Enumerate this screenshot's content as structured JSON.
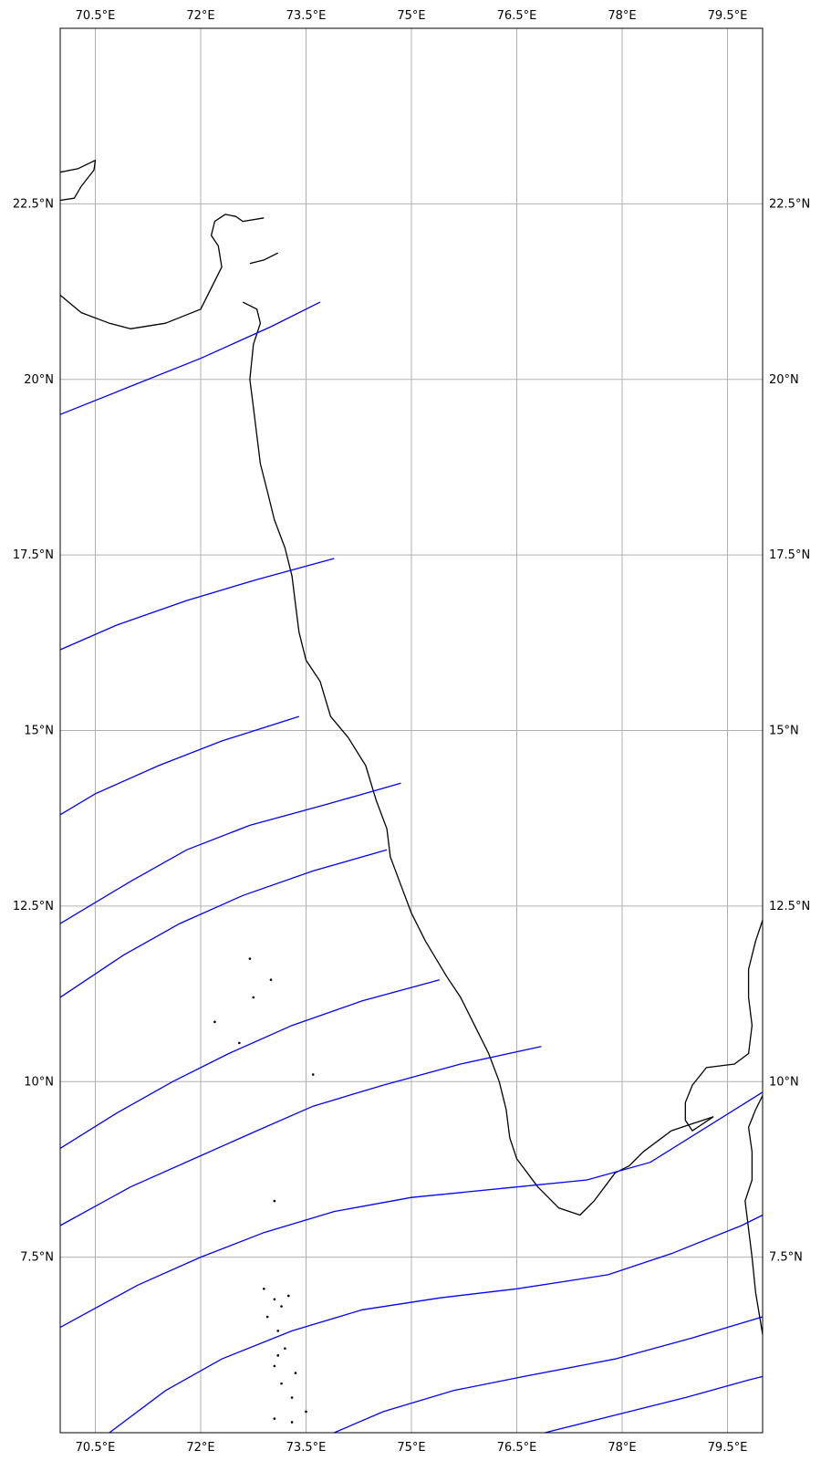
{
  "map": {
    "projection": "PlateCarree",
    "lon_range": [
      70.0,
      80.0
    ],
    "lat_range": [
      5.0,
      25.0
    ],
    "grid": true,
    "colors": {
      "grid": "#b0b0b0",
      "coastline": "#000000",
      "track": "#0000ff",
      "frame": "#000000",
      "background": "#ffffff"
    },
    "lon_ticks": [
      {
        "value": 70.5,
        "label": "70.5°E"
      },
      {
        "value": 72.0,
        "label": "72°E"
      },
      {
        "value": 73.5,
        "label": "73.5°E"
      },
      {
        "value": 75.0,
        "label": "75°E"
      },
      {
        "value": 76.5,
        "label": "76.5°E"
      },
      {
        "value": 78.0,
        "label": "78°E"
      },
      {
        "value": 79.5,
        "label": "79.5°E"
      }
    ],
    "lat_ticks": [
      {
        "value": 22.5,
        "label": "22.5°N"
      },
      {
        "value": 20.0,
        "label": "20°N"
      },
      {
        "value": 17.5,
        "label": "17.5°N"
      },
      {
        "value": 15.0,
        "label": "15°N"
      },
      {
        "value": 12.5,
        "label": "12.5°N"
      },
      {
        "value": 10.0,
        "label": "10°N"
      },
      {
        "value": 7.5,
        "label": "7.5°N"
      }
    ],
    "tracks": [
      [
        [
          70.0,
          19.5
        ],
        [
          71.0,
          19.9
        ],
        [
          72.0,
          20.3
        ],
        [
          73.0,
          20.75
        ],
        [
          73.7,
          21.1
        ]
      ],
      [
        [
          70.0,
          16.15
        ],
        [
          70.8,
          16.5
        ],
        [
          71.8,
          16.85
        ],
        [
          72.8,
          17.15
        ],
        [
          73.9,
          17.45
        ]
      ],
      [
        [
          70.0,
          13.8
        ],
        [
          70.5,
          14.1
        ],
        [
          71.4,
          14.5
        ],
        [
          72.3,
          14.85
        ],
        [
          73.4,
          15.2
        ]
      ],
      [
        [
          70.0,
          12.25
        ],
        [
          71.0,
          12.85
        ],
        [
          71.8,
          13.3
        ],
        [
          72.7,
          13.65
        ],
        [
          73.8,
          13.95
        ],
        [
          74.85,
          14.25
        ]
      ],
      [
        [
          70.0,
          11.2
        ],
        [
          70.9,
          11.8
        ],
        [
          71.7,
          12.25
        ],
        [
          72.6,
          12.65
        ],
        [
          73.6,
          13.0
        ],
        [
          74.65,
          13.3
        ]
      ],
      [
        [
          70.0,
          9.05
        ],
        [
          70.8,
          9.55
        ],
        [
          71.6,
          10.0
        ],
        [
          72.4,
          10.4
        ],
        [
          73.3,
          10.8
        ],
        [
          74.3,
          11.15
        ],
        [
          75.4,
          11.45
        ]
      ],
      [
        [
          70.0,
          7.95
        ],
        [
          71.0,
          8.5
        ],
        [
          71.9,
          8.9
        ],
        [
          72.8,
          9.3
        ],
        [
          73.6,
          9.65
        ],
        [
          74.6,
          9.95
        ],
        [
          75.7,
          10.25
        ],
        [
          76.85,
          10.5
        ]
      ],
      [
        [
          70.0,
          6.5
        ],
        [
          71.1,
          7.1
        ],
        [
          72.0,
          7.5
        ],
        [
          72.9,
          7.85
        ],
        [
          73.9,
          8.15
        ],
        [
          75.0,
          8.35
        ],
        [
          76.5,
          8.5
        ],
        [
          77.5,
          8.6
        ],
        [
          78.4,
          8.85
        ],
        [
          80.0,
          9.85
        ]
      ],
      [
        [
          70.7,
          5.0
        ],
        [
          71.5,
          5.6
        ],
        [
          72.3,
          6.05
        ],
        [
          73.3,
          6.45
        ],
        [
          74.3,
          6.75
        ],
        [
          75.4,
          6.92
        ],
        [
          76.5,
          7.05
        ],
        [
          77.8,
          7.25
        ],
        [
          78.7,
          7.55
        ],
        [
          79.7,
          7.95
        ],
        [
          80.0,
          8.1
        ]
      ],
      [
        [
          73.9,
          5.0
        ],
        [
          74.6,
          5.3
        ],
        [
          75.6,
          5.6
        ],
        [
          76.6,
          5.8
        ],
        [
          77.9,
          6.05
        ],
        [
          79.0,
          6.35
        ],
        [
          80.0,
          6.65
        ]
      ],
      [
        [
          76.9,
          5.0
        ],
        [
          77.9,
          5.25
        ],
        [
          78.9,
          5.5
        ],
        [
          79.8,
          5.75
        ],
        [
          80.0,
          5.8
        ]
      ]
    ],
    "coastlines": [
      [
        [
          70.0,
          22.95
        ],
        [
          70.25,
          23.0
        ],
        [
          70.5,
          23.12
        ],
        [
          70.48,
          22.98
        ],
        [
          70.3,
          22.75
        ],
        [
          70.2,
          22.58
        ],
        [
          70.0,
          22.55
        ]
      ],
      [
        [
          70.0,
          21.2
        ],
        [
          70.3,
          20.95
        ],
        [
          70.7,
          20.8
        ],
        [
          71.0,
          20.72
        ],
        [
          71.5,
          20.8
        ],
        [
          72.0,
          21.0
        ],
        [
          72.1,
          21.2
        ],
        [
          72.3,
          21.6
        ],
        [
          72.25,
          21.9
        ],
        [
          72.15,
          22.05
        ],
        [
          72.2,
          22.25
        ],
        [
          72.35,
          22.35
        ],
        [
          72.5,
          22.32
        ],
        [
          72.6,
          22.25
        ],
        [
          72.9,
          22.3
        ]
      ],
      [
        [
          72.7,
          21.65
        ],
        [
          72.9,
          21.7
        ],
        [
          73.1,
          21.8
        ]
      ],
      [
        [
          72.6,
          21.1
        ],
        [
          72.8,
          21.0
        ],
        [
          72.85,
          20.8
        ],
        [
          72.75,
          20.5
        ],
        [
          72.7,
          20.0
        ],
        [
          72.75,
          19.6
        ],
        [
          72.8,
          19.2
        ],
        [
          72.85,
          18.8
        ],
        [
          72.95,
          18.4
        ],
        [
          73.05,
          18.0
        ],
        [
          73.2,
          17.6
        ],
        [
          73.3,
          17.2
        ],
        [
          73.35,
          16.8
        ],
        [
          73.4,
          16.4
        ],
        [
          73.5,
          16.0
        ],
        [
          73.7,
          15.7
        ],
        [
          73.85,
          15.2
        ],
        [
          74.1,
          14.9
        ],
        [
          74.35,
          14.5
        ],
        [
          74.5,
          14.0
        ],
        [
          74.65,
          13.6
        ],
        [
          74.7,
          13.2
        ],
        [
          74.85,
          12.8
        ],
        [
          75.0,
          12.4
        ],
        [
          75.2,
          12.0
        ],
        [
          75.5,
          11.5
        ],
        [
          75.7,
          11.2
        ],
        [
          75.9,
          10.8
        ],
        [
          76.1,
          10.4
        ],
        [
          76.25,
          10.0
        ],
        [
          76.35,
          9.6
        ],
        [
          76.4,
          9.2
        ],
        [
          76.5,
          8.9
        ],
        [
          76.8,
          8.5
        ],
        [
          77.1,
          8.2
        ],
        [
          77.4,
          8.1
        ],
        [
          77.6,
          8.3
        ],
        [
          77.9,
          8.7
        ],
        [
          78.1,
          8.8
        ],
        [
          78.3,
          9.0
        ],
        [
          78.7,
          9.3
        ],
        [
          79.0,
          9.4
        ],
        [
          79.3,
          9.5
        ]
      ],
      [
        [
          79.3,
          9.5
        ],
        [
          79.0,
          9.3
        ],
        [
          78.9,
          9.45
        ],
        [
          78.9,
          9.7
        ],
        [
          79.0,
          9.95
        ],
        [
          79.2,
          10.2
        ],
        [
          79.6,
          10.25
        ],
        [
          79.8,
          10.4
        ],
        [
          79.85,
          10.8
        ],
        [
          79.8,
          11.2
        ],
        [
          79.8,
          11.6
        ],
        [
          79.9,
          12.0
        ],
        [
          80.0,
          12.3
        ]
      ],
      [
        [
          80.0,
          9.8
        ],
        [
          79.9,
          9.6
        ],
        [
          79.8,
          9.35
        ],
        [
          79.85,
          9.0
        ],
        [
          79.85,
          8.6
        ],
        [
          79.75,
          8.3
        ],
        [
          79.8,
          7.9
        ],
        [
          79.85,
          7.5
        ],
        [
          79.9,
          7.0
        ],
        [
          80.0,
          6.4
        ]
      ]
    ],
    "islands": [
      [
        72.7,
        11.75
      ],
      [
        73.0,
        11.45
      ],
      [
        72.75,
        11.2
      ],
      [
        72.2,
        10.85
      ],
      [
        72.55,
        10.55
      ],
      [
        73.6,
        10.1
      ],
      [
        73.05,
        8.3
      ],
      [
        72.9,
        7.05
      ],
      [
        73.05,
        6.9
      ],
      [
        73.15,
        6.8
      ],
      [
        73.25,
        6.95
      ],
      [
        72.95,
        6.65
      ],
      [
        73.1,
        6.45
      ],
      [
        73.2,
        6.2
      ],
      [
        73.05,
        5.95
      ],
      [
        73.15,
        5.7
      ],
      [
        73.3,
        5.5
      ],
      [
        73.5,
        5.3
      ],
      [
        73.05,
        5.2
      ],
      [
        73.3,
        5.15
      ],
      [
        73.1,
        6.1
      ],
      [
        73.35,
        5.85
      ]
    ]
  }
}
